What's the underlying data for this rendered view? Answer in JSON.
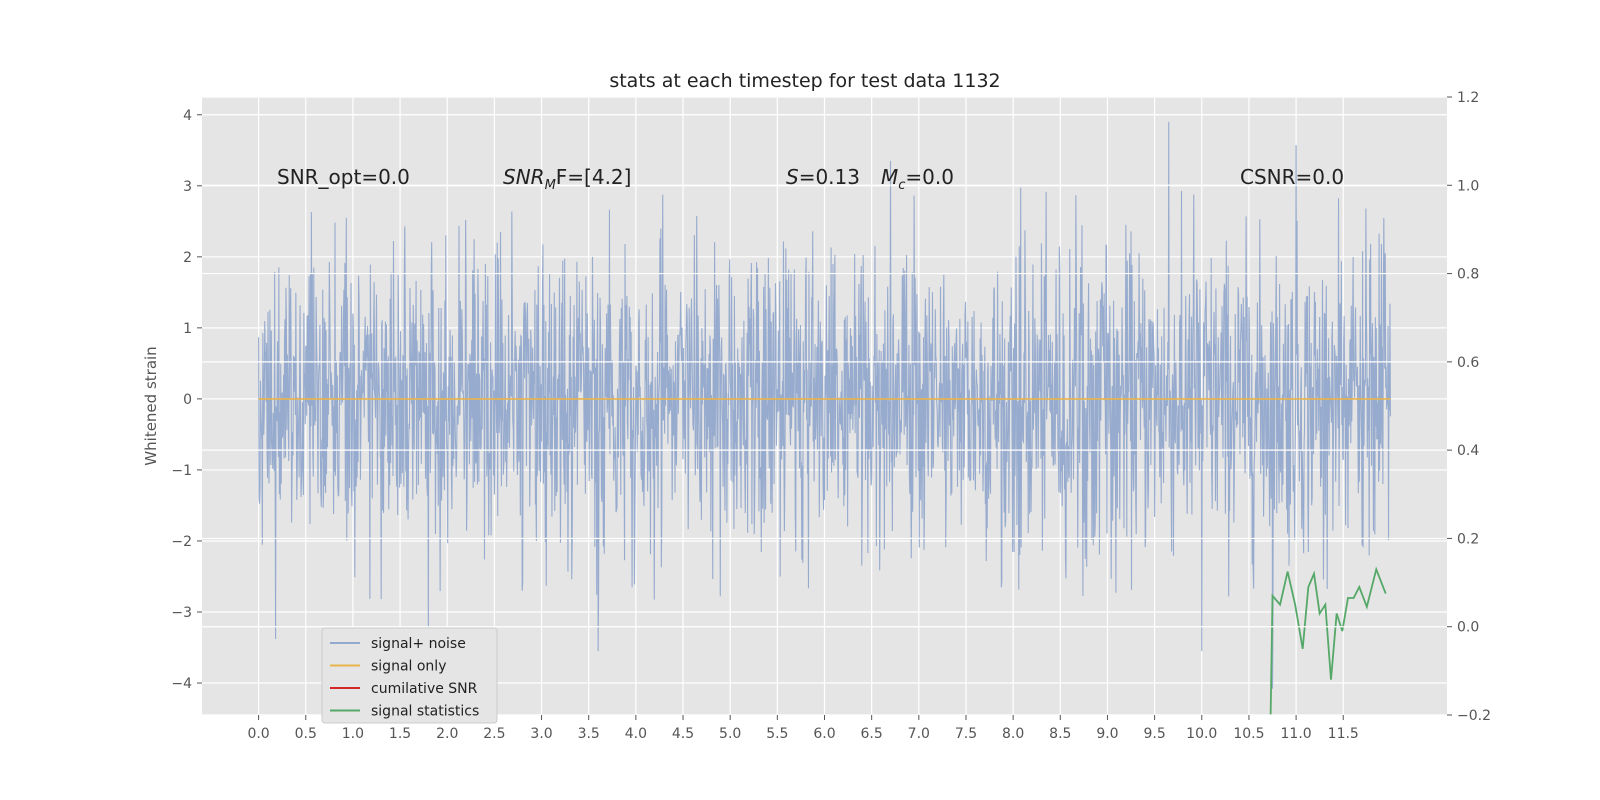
{
  "chart_data": {
    "type": "line",
    "title": "stats at each timestep for test data 1132",
    "xlabel": "",
    "ylabel": "Whitened strain",
    "xlim": [
      -0.6,
      12.6
    ],
    "ylim": [
      -4.45,
      4.25
    ],
    "y2lim": [
      -0.2,
      1.2
    ],
    "x_ticks": [
      0.0,
      0.5,
      1.0,
      1.5,
      2.0,
      2.5,
      3.0,
      3.5,
      4.0,
      4.5,
      5.0,
      5.5,
      6.0,
      6.5,
      7.0,
      7.5,
      8.0,
      8.5,
      9.0,
      9.5,
      10.0,
      10.5,
      11.0,
      11.5
    ],
    "x_tick_labels": [
      "0.0",
      "0.5",
      "1.0",
      "1.5",
      "2.0",
      "2.5",
      "3.0",
      "3.5",
      "4.0",
      "4.5",
      "5.0",
      "5.5",
      "6.0",
      "6.5",
      "7.0",
      "7.5",
      "8.0",
      "8.5",
      "9.0",
      "9.5",
      "10.0",
      "10.5",
      "11.0",
      "11.5"
    ],
    "y_ticks": [
      -4,
      -3,
      -2,
      -1,
      0,
      1,
      2,
      3,
      4
    ],
    "y_tick_labels": [
      "−4",
      "−3",
      "−2",
      "−1",
      "0",
      "1",
      "2",
      "3",
      "4"
    ],
    "y2_ticks": [
      -0.2,
      0.0,
      0.2,
      0.4,
      0.6,
      0.8,
      1.0,
      1.2
    ],
    "y2_tick_labels": [
      "−0.2",
      "0.0",
      "0.2",
      "0.4",
      "0.6",
      "0.8",
      "1.0",
      "1.2"
    ],
    "grid": true,
    "legend_position": "lower-left",
    "annotations": {
      "snr_opt": "SNR_opt=0.0",
      "snr_mf_main": "SNR",
      "snr_mf_sub": "M",
      "snr_mf_rest": "F=[4.2]",
      "s_italic": "S",
      "s_value": "=0.13",
      "mc_italic": "M",
      "mc_sub": "c",
      "mc_value": "=0.0",
      "csnr": "CSNR=0.0"
    },
    "series": [
      {
        "name": "signal+ noise",
        "color": "#92a8cc",
        "axis": "left",
        "x_start": 0.0,
        "x_end": 12.0,
        "description_values": "whitened noise, amplitude roughly between -3.5 and 3.9",
        "extremes": [
          {
            "x": 0.18,
            "y": -3.38
          },
          {
            "x": 1.8,
            "y": -3.45
          },
          {
            "x": 3.6,
            "y": -3.55
          },
          {
            "x": 6.7,
            "y": 3.35
          },
          {
            "x": 9.65,
            "y": 3.9
          },
          {
            "x": 10.0,
            "y": -3.55
          },
          {
            "x": 10.75,
            "y": -4.08
          },
          {
            "x": 11.0,
            "y": 3.57
          }
        ]
      },
      {
        "name": "signal only",
        "color": "#e8b44c",
        "axis": "left",
        "x": [
          0.0,
          12.0
        ],
        "y": [
          0.0,
          0.0
        ]
      },
      {
        "name": "cumilative SNR",
        "color": "#d62728",
        "axis": "right",
        "x": [],
        "y": []
      },
      {
        "name": "signal statistics",
        "color": "#55a868",
        "axis": "right",
        "x": [
          10.73,
          10.75,
          10.83,
          10.91,
          10.99,
          11.07,
          11.13,
          11.19,
          11.25,
          11.31,
          11.37,
          11.43,
          11.49,
          11.55,
          11.61,
          11.67,
          11.75,
          11.85,
          11.95
        ],
        "y": [
          -0.2,
          0.07,
          0.05,
          0.125,
          0.05,
          -0.05,
          0.09,
          0.12,
          0.03,
          0.05,
          -0.12,
          0.03,
          -0.01,
          0.065,
          0.065,
          0.09,
          0.045,
          0.13,
          0.075
        ]
      }
    ]
  }
}
